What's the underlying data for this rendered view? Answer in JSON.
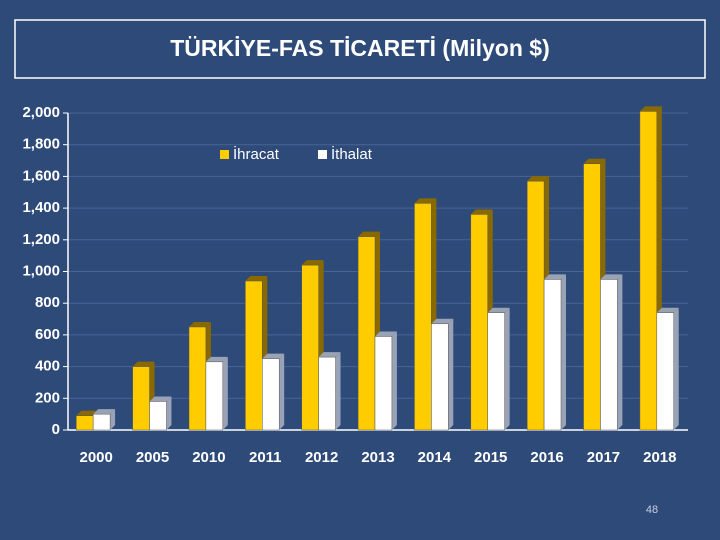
{
  "chart_data": {
    "type": "bar",
    "title": "TÜRKİYE-FAS  TİCARETİ (Milyon $)",
    "categories": [
      "2000",
      "2005",
      "2010",
      "2011",
      "2012",
      "2013",
      "2014",
      "2015",
      "2016",
      "2017",
      "2018"
    ],
    "series": [
      {
        "name": "İhracat",
        "color": "#ffcc00",
        "values": [
          90,
          400,
          650,
          940,
          1040,
          1220,
          1430,
          1360,
          1570,
          1680,
          2010
        ]
      },
      {
        "name": "İthalat",
        "color": "#ffffff",
        "values": [
          100,
          180,
          430,
          450,
          460,
          590,
          670,
          740,
          950,
          950,
          740
        ]
      }
    ],
    "ylim": [
      0,
      2000
    ],
    "yticks": [
      0,
      200,
      400,
      600,
      800,
      {
        "value": 1000,
        "label": "1,000"
      },
      {
        "value": 1200,
        "label": "1,200"
      },
      {
        "value": 1400,
        "label": "1,400"
      },
      {
        "value": 1600,
        "label": "1,600"
      },
      {
        "value": 1800,
        "label": "1,800"
      },
      {
        "value": 2000,
        "label": "2,000"
      }
    ],
    "grid": true,
    "legend": "top",
    "page_number": "48"
  }
}
